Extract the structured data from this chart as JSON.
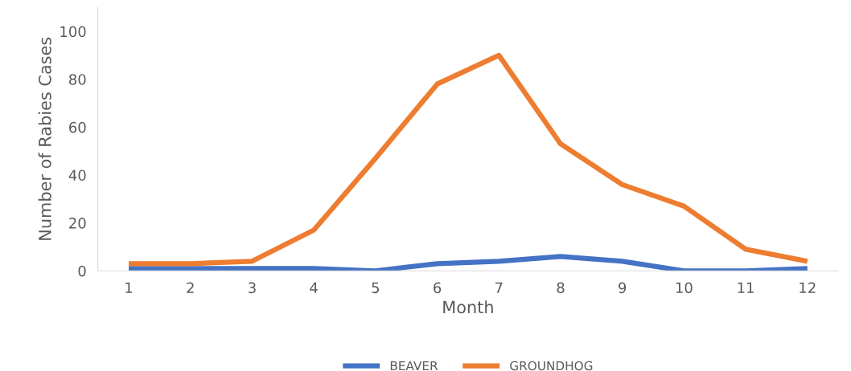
{
  "chart_data": {
    "type": "line",
    "xlabel": "Month",
    "ylabel": "Number of Rabies Cases",
    "categories": [
      "1",
      "2",
      "3",
      "4",
      "5",
      "6",
      "7",
      "8",
      "9",
      "10",
      "11",
      "12"
    ],
    "series": [
      {
        "name": "BEAVER",
        "color": "#4472c4",
        "values": [
          1,
          1,
          1,
          1,
          0,
          3,
          4,
          6,
          4,
          0,
          0,
          1
        ]
      },
      {
        "name": "GROUNDHOG",
        "color": "#ed7d31",
        "values": [
          3,
          3,
          4,
          17,
          47,
          78,
          90,
          53,
          36,
          27,
          9,
          4
        ]
      }
    ],
    "ylim": [
      0,
      110
    ],
    "yticks": [
      0,
      20,
      40,
      60,
      80,
      100
    ],
    "legend": "bottom",
    "grid": false
  }
}
